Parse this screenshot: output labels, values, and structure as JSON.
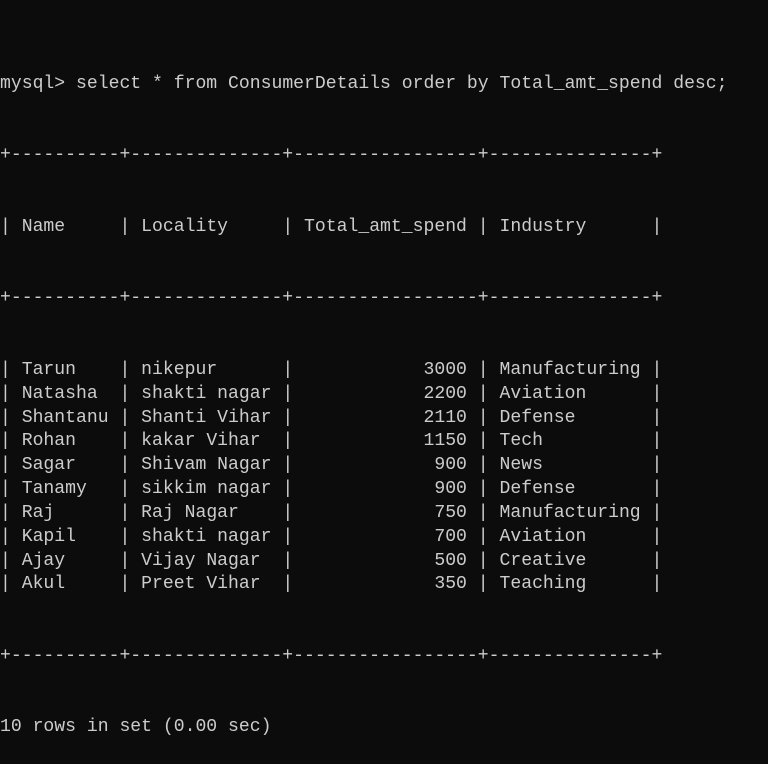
{
  "terminal": {
    "prompt": "mysql> ",
    "command": "select * from ConsumerDetails order by Total_amt_spend desc;",
    "colors": {
      "background": "#0c0c0c",
      "foreground": "#cccccc"
    }
  },
  "table": {
    "border": "+----------+--------------+-----------------+---------------+",
    "columns": [
      {
        "key": "name",
        "label": "Name",
        "width": 8,
        "align": "left"
      },
      {
        "key": "locality",
        "label": "Locality",
        "width": 12,
        "align": "left"
      },
      {
        "key": "total",
        "label": "Total_amt_spend",
        "width": 15,
        "align": "right"
      },
      {
        "key": "industry",
        "label": "Industry",
        "width": 13,
        "align": "left"
      }
    ],
    "rows": [
      {
        "name": "Tarun",
        "locality": "nikepur",
        "total": "3000",
        "industry": "Manufacturing"
      },
      {
        "name": "Natasha",
        "locality": "shakti nagar",
        "total": "2200",
        "industry": "Aviation"
      },
      {
        "name": "Shantanu",
        "locality": "Shanti Vihar",
        "total": "2110",
        "industry": "Defense"
      },
      {
        "name": "Rohan",
        "locality": "kakar Vihar",
        "total": "1150",
        "industry": "Tech"
      },
      {
        "name": "Sagar",
        "locality": "Shivam Nagar",
        "total": "900",
        "industry": "News"
      },
      {
        "name": "Tanamy",
        "locality": "sikkim nagar",
        "total": "900",
        "industry": "Defense"
      },
      {
        "name": "Raj",
        "locality": "Raj Nagar",
        "total": "750",
        "industry": "Manufacturing"
      },
      {
        "name": "Kapil",
        "locality": "shakti nagar",
        "total": "700",
        "industry": "Aviation"
      },
      {
        "name": "Ajay",
        "locality": "Vijay Nagar",
        "total": "500",
        "industry": "Creative"
      },
      {
        "name": "Akul",
        "locality": "Preet Vihar",
        "total": "350",
        "industry": "Teaching"
      }
    ]
  },
  "footer": {
    "result_summary": "10 rows in set (0.00 sec)"
  }
}
